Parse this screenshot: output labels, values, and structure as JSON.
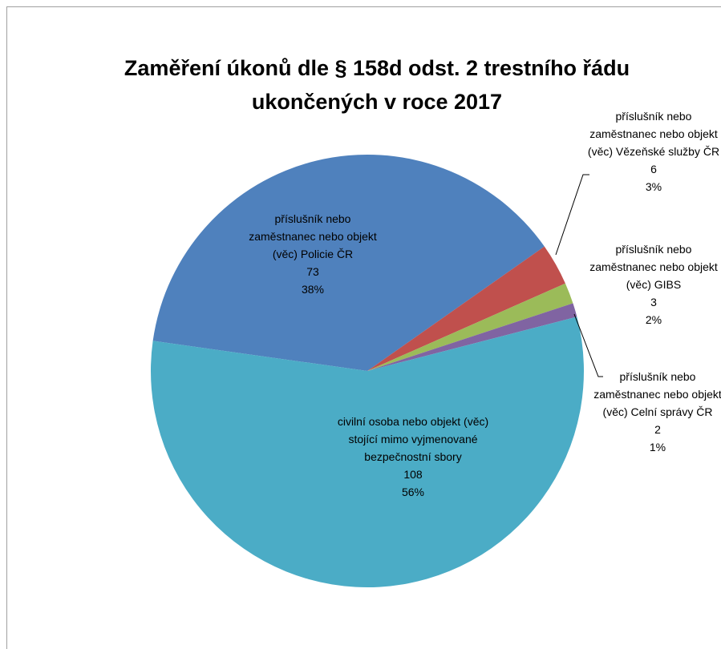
{
  "chart_data": {
    "type": "pie",
    "title": "Zaměření úkonů dle § 158d odst. 2 trestního řádu ukončených v roce 2017",
    "categories": [
      "příslušník nebo zaměstnanec nebo objekt (věc) Policie ČR",
      "příslušník nebo zaměstnanec nebo objekt (věc) Vězeňské služby ČR",
      "příslušník nebo zaměstnanec nebo objekt (věc) GIBS",
      "příslušník nebo zaměstnanec nebo objekt (věc) Celní správy ČR",
      "civilní osoba nebo objekt (věc) stojící mimo vyjmenované bezpečnostní sbory"
    ],
    "values": [
      73,
      6,
      3,
      2,
      108
    ],
    "percent_labels": [
      "38%",
      "3%",
      "2%",
      "1%",
      "56%"
    ],
    "colors": [
      "#4f81bd",
      "#c0504d",
      "#9bbb59",
      "#8064a2",
      "#4bacc6"
    ]
  }
}
